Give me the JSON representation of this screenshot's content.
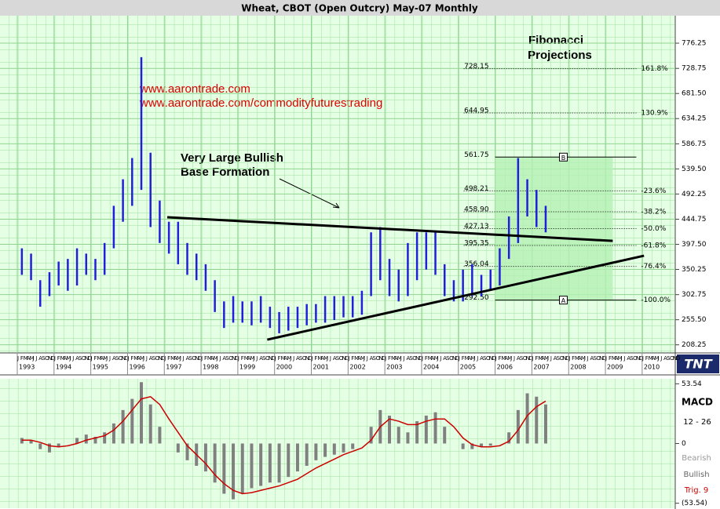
{
  "chart_data": [
    {
      "type": "range",
      "title": "Wheat, CBOT (Open Outcry) May-07  Monthly",
      "annotations": [
        "www.aarontrade.com",
        "www.aarontrade.com/commodityfuturestrading",
        "Very Large Bullish",
        "Base Formation",
        "Fibonacci",
        "Projections"
      ],
      "logo": "TNT",
      "month_labels": [
        "J",
        "F",
        "M",
        "A",
        "M",
        "J",
        "J",
        "A",
        "S",
        "O",
        "N",
        "D"
      ],
      "x": [
        1993.125,
        1993.375,
        1993.625,
        1993.875,
        1994.125,
        1994.375,
        1994.625,
        1994.875,
        1995.125,
        1995.375,
        1995.625,
        1995.875,
        1996.125,
        1996.375,
        1996.625,
        1996.875,
        1997.125,
        1997.375,
        1997.625,
        1997.875,
        1998.125,
        1998.375,
        1998.625,
        1998.875,
        1999.125,
        1999.375,
        1999.625,
        1999.875,
        2000.125,
        2000.375,
        2000.625,
        2000.875,
        2001.125,
        2001.375,
        2001.625,
        2001.875,
        2002.125,
        2002.375,
        2002.625,
        2002.875,
        2003.125,
        2003.375,
        2003.625,
        2003.875,
        2004.125,
        2004.375,
        2004.625,
        2004.875,
        2005.125,
        2005.375,
        2005.625,
        2005.875,
        2006.125,
        2006.375,
        2006.625,
        2006.875,
        2007.125,
        2007.375
      ],
      "low": [
        340,
        330,
        280,
        300,
        320,
        310,
        320,
        340,
        330,
        340,
        390,
        440,
        470,
        500,
        430,
        400,
        380,
        360,
        340,
        330,
        310,
        270,
        240,
        250,
        250,
        245,
        250,
        240,
        230,
        235,
        240,
        245,
        250,
        250,
        255,
        260,
        260,
        265,
        300,
        330,
        300,
        290,
        300,
        330,
        350,
        340,
        300,
        290,
        290,
        300,
        300,
        310,
        320,
        370,
        400,
        450,
        430,
        420
      ],
      "high": [
        390,
        380,
        330,
        345,
        365,
        370,
        390,
        380,
        370,
        400,
        470,
        520,
        560,
        750,
        570,
        480,
        440,
        440,
        400,
        380,
        360,
        330,
        290,
        300,
        290,
        290,
        300,
        280,
        270,
        280,
        280,
        285,
        285,
        300,
        300,
        300,
        300,
        310,
        420,
        430,
        370,
        350,
        400,
        420,
        420,
        420,
        360,
        330,
        350,
        360,
        340,
        350,
        390,
        450,
        560,
        520,
        500,
        470
      ],
      "color": "#2020d8",
      "xlim": [
        1992.53,
        2010.9
      ],
      "xticks": [
        1993,
        1994,
        1995,
        1996,
        1997,
        1998,
        1999,
        2000,
        2001,
        2002,
        2003,
        2004,
        2005,
        2006,
        2007,
        2008,
        2009,
        2010
      ],
      "ylim": [
        193,
        828
      ],
      "yticks": [
        776.25,
        728.75,
        {
          "value": 681.5,
          "label": "681.50"
        },
        634.25,
        586.75,
        {
          "value": 539.5,
          "label": "539.50"
        },
        492.25,
        444.75,
        {
          "value": 397.5,
          "label": "397.50"
        },
        350.25,
        302.75,
        {
          "value": 255.5,
          "label": "255.50"
        },
        208.25
      ],
      "grid": true,
      "trendlines": [
        {
          "x": [
            1997.08,
            2009.2
          ],
          "y": [
            448.5,
            404
          ],
          "color": "#000000"
        },
        {
          "x": [
            1999.8,
            2010.05
          ],
          "y": [
            218,
            376
          ],
          "color": "#000000"
        }
      ],
      "fib_x": [
        2006.0,
        2009.2
      ],
      "fib_levels": [
        {
          "value": 728.15,
          "label": "728.15",
          "pct": "161.8%"
        },
        {
          "value": 644.95,
          "label": "644.95",
          "pct": "130.9%"
        },
        {
          "value": 561.75,
          "label": "561.75",
          "box": "B"
        },
        {
          "value": 498.21,
          "label": "498.21",
          "pct": "-23.6%"
        },
        {
          "value": 458.9,
          "label": "458.90",
          "pct": "-38.2%"
        },
        {
          "value": 427.13,
          "label": "427.13",
          "pct": "-50.0%"
        },
        {
          "value": 395.35,
          "label": "395.35",
          "pct": "-61.8%"
        },
        {
          "value": 356.04,
          "label": "356.04",
          "pct": "-76.4%"
        },
        {
          "value": 292.5,
          "label": "292.50",
          "box": "A",
          "pct": "-100.0%"
        }
      ]
    },
    {
      "type": "macd",
      "labels": [
        "MACD",
        "12 - 26",
        "Bearish",
        "Bullish",
        "Trig. 9"
      ],
      "x": [
        1993.125,
        1993.375,
        1993.625,
        1993.875,
        1994.125,
        1994.375,
        1994.625,
        1994.875,
        1995.125,
        1995.375,
        1995.625,
        1995.875,
        1996.125,
        1996.375,
        1996.625,
        1996.875,
        1997.125,
        1997.375,
        1997.625,
        1997.875,
        1998.125,
        1998.375,
        1998.625,
        1998.875,
        1999.125,
        1999.375,
        1999.625,
        1999.875,
        2000.125,
        2000.375,
        2000.625,
        2000.875,
        2001.125,
        2001.375,
        2001.625,
        2001.875,
        2002.125,
        2002.375,
        2002.625,
        2002.875,
        2003.125,
        2003.375,
        2003.625,
        2003.875,
        2004.125,
        2004.375,
        2004.625,
        2004.875,
        2005.125,
        2005.375,
        2005.625,
        2005.875,
        2006.125,
        2006.375,
        2006.625,
        2006.875,
        2007.125,
        2007.375
      ],
      "series": [
        {
          "name": "MACD",
          "color": "#808080",
          "values": [
            5,
            3,
            -5,
            -8,
            -3,
            0,
            5,
            8,
            6,
            10,
            18,
            30,
            40,
            55,
            35,
            15,
            0,
            -8,
            -15,
            -20,
            -25,
            -35,
            -45,
            -50,
            -45,
            -40,
            -38,
            -35,
            -35,
            -30,
            -25,
            -20,
            -15,
            -12,
            -10,
            -8,
            -5,
            0,
            15,
            30,
            25,
            15,
            10,
            20,
            25,
            28,
            15,
            0,
            -5,
            -5,
            -3,
            -2,
            0,
            10,
            30,
            45,
            42,
            35
          ]
        },
        {
          "name": "Trig. 9",
          "color": "#cc0000",
          "values": [
            3,
            3,
            1,
            -2,
            -3,
            -2,
            0,
            3,
            5,
            7,
            12,
            20,
            30,
            40,
            42,
            35,
            22,
            10,
            -2,
            -10,
            -18,
            -28,
            -36,
            -42,
            -45,
            -44,
            -42,
            -40,
            -38,
            -35,
            -32,
            -27,
            -22,
            -18,
            -14,
            -10,
            -7,
            -4,
            3,
            15,
            22,
            20,
            17,
            17,
            20,
            22,
            22,
            15,
            5,
            -1,
            -3,
            -3,
            -2,
            2,
            12,
            25,
            33,
            38
          ]
        }
      ],
      "xlim": [
        1992.53,
        2010.9
      ],
      "ylim": [
        -58,
        58
      ],
      "yticks": [
        {
          "value": 53.54,
          "label": "53.54"
        },
        0,
        {
          "value": -53.54,
          "label": "(53.54)"
        }
      ]
    }
  ]
}
